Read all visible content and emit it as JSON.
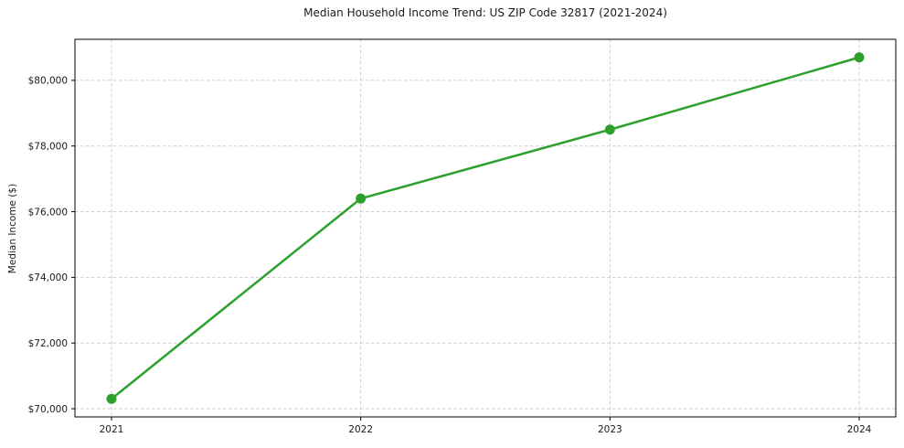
{
  "chart_data": {
    "type": "line",
    "title": "Median Household Income Trend: US ZIP Code 32817 (2021-2024)",
    "xlabel": "",
    "ylabel": "Median Income ($)",
    "categories": [
      "2021",
      "2022",
      "2023",
      "2024"
    ],
    "series": [
      {
        "name": "median-household-income",
        "values": [
          70300,
          76400,
          78500,
          80700
        ],
        "color": "#2ca02c",
        "marker": "circle",
        "marker_radius": 5.5,
        "line_width": 2.5
      }
    ],
    "ylim": [
      69750,
      81250
    ],
    "yticks": [
      {
        "value": 70000,
        "label": "$70,000"
      },
      {
        "value": 72000,
        "label": "$72,000"
      },
      {
        "value": 74000,
        "label": "$74,000"
      },
      {
        "value": 76000,
        "label": "$76,000"
      },
      {
        "value": 78000,
        "label": "$78,000"
      },
      {
        "value": 80000,
        "label": "$80,000"
      }
    ],
    "grid": "dashed",
    "grid_color": "#cfcfcf",
    "axis_color": "#000000",
    "tick_color": "#1a1a1a",
    "text_color": "#1a1a1a",
    "legend": "none",
    "background": "#ffffff"
  }
}
